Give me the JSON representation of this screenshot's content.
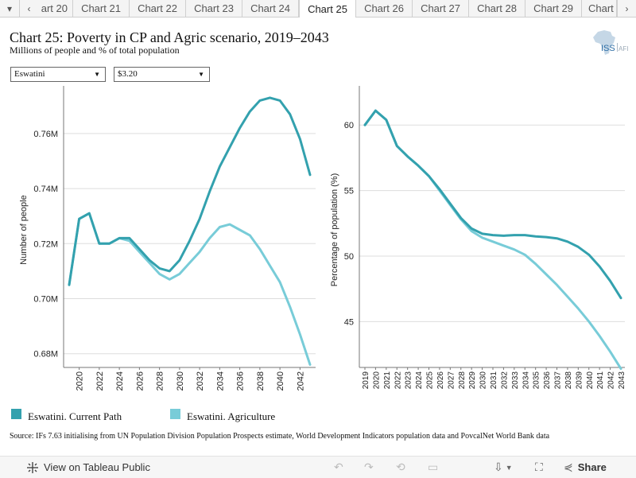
{
  "tabs": {
    "prev_icon": "chevron-left-icon",
    "next_icon": "chevron-right-icon",
    "items": [
      {
        "label": "art 20"
      },
      {
        "label": "Chart 21"
      },
      {
        "label": "Chart 22"
      },
      {
        "label": "Chart 23"
      },
      {
        "label": "Chart 24"
      },
      {
        "label": "Chart 25",
        "active": true
      },
      {
        "label": "Chart 26"
      },
      {
        "label": "Chart 27"
      },
      {
        "label": "Chart 28"
      },
      {
        "label": "Chart 29"
      },
      {
        "label": "Chart"
      }
    ],
    "menu_icon": "caret-down-icon"
  },
  "header": {
    "title": "Chart 25: Poverty in CP and Agric scenario, 2019–2043",
    "subtitle": "Millions of people and % of total population",
    "logo_text": "ISS",
    "logo_suffix": "AFI"
  },
  "filters": {
    "country": "Eswatini",
    "threshold": "$3.20"
  },
  "colors": {
    "current_path": "#33a1ae",
    "agriculture": "#78ccd8",
    "grid": "#dddddd",
    "axis": "#777777"
  },
  "chart_data": [
    {
      "type": "line",
      "ylabel": "Number of people",
      "ylim": [
        0.675,
        0.775
      ],
      "y_ticks": [
        0.68,
        0.7,
        0.72,
        0.74,
        0.76
      ],
      "y_tick_labels": [
        "0.68M",
        "0.70M",
        "0.72M",
        "0.74M",
        "0.76M"
      ],
      "x": [
        2019,
        2020,
        2021,
        2022,
        2023,
        2024,
        2025,
        2026,
        2027,
        2028,
        2029,
        2030,
        2031,
        2032,
        2033,
        2034,
        2035,
        2036,
        2037,
        2038,
        2039,
        2040,
        2041,
        2042,
        2043
      ],
      "x_tick_labels": [
        "2020",
        "2022",
        "2024",
        "2026",
        "2028",
        "2030",
        "2032",
        "2034",
        "2036",
        "2038",
        "2040",
        "2042"
      ],
      "grid": true,
      "series": [
        {
          "name": "Eswatini. Current Path",
          "values": [
            0.705,
            0.729,
            0.731,
            0.72,
            0.72,
            0.722,
            0.722,
            0.718,
            0.714,
            0.711,
            0.71,
            0.714,
            0.721,
            0.729,
            0.739,
            0.748,
            0.755,
            0.762,
            0.768,
            0.772,
            0.773,
            0.772,
            0.767,
            0.758,
            0.745
          ]
        },
        {
          "name": "Eswatini. Agriculture",
          "values": [
            0.705,
            0.729,
            0.731,
            0.72,
            0.72,
            0.722,
            0.721,
            0.717,
            0.713,
            0.709,
            0.707,
            0.709,
            0.713,
            0.717,
            0.722,
            0.726,
            0.727,
            0.725,
            0.723,
            0.718,
            0.712,
            0.706,
            0.697,
            0.687,
            0.676
          ]
        }
      ]
    },
    {
      "type": "line",
      "ylabel": "Percentage of population (%)",
      "ylim": [
        41.5,
        62.5
      ],
      "y_ticks": [
        45,
        50,
        55,
        60
      ],
      "y_tick_labels": [
        "45",
        "50",
        "55",
        "60"
      ],
      "x": [
        2019,
        2020,
        2021,
        2022,
        2023,
        2024,
        2025,
        2026,
        2027,
        2028,
        2029,
        2030,
        2031,
        2032,
        2033,
        2034,
        2035,
        2036,
        2037,
        2038,
        2039,
        2040,
        2041,
        2042,
        2043
      ],
      "x_tick_labels": [
        "2019",
        "2020",
        "2021",
        "2022",
        "2023",
        "2024",
        "2025",
        "2026",
        "2027",
        "2028",
        "2029",
        "2030",
        "2031",
        "2032",
        "2033",
        "2034",
        "2035",
        "2036",
        "2037",
        "2038",
        "2039",
        "2040",
        "2041",
        "2042",
        "2043"
      ],
      "grid": true,
      "series": [
        {
          "name": "Eswatini. Current Path",
          "values": [
            60.0,
            61.1,
            60.4,
            58.4,
            57.6,
            56.9,
            56.1,
            55.1,
            54.0,
            52.9,
            52.1,
            51.7,
            51.6,
            51.55,
            51.6,
            51.6,
            51.5,
            51.45,
            51.35,
            51.1,
            50.7,
            50.1,
            49.2,
            48.1,
            46.8
          ]
        },
        {
          "name": "Eswatini. Agriculture",
          "values": [
            60.0,
            61.1,
            60.4,
            58.4,
            57.6,
            56.9,
            56.1,
            55.0,
            53.9,
            52.8,
            51.9,
            51.4,
            51.1,
            50.8,
            50.5,
            50.1,
            49.4,
            48.6,
            47.8,
            46.9,
            46.0,
            45.0,
            43.9,
            42.7,
            41.4
          ]
        }
      ]
    }
  ],
  "legend": [
    {
      "label": "Eswatini. Current Path"
    },
    {
      "label": "Eswatini. Agriculture"
    }
  ],
  "source": "Source: IFs 7.63 initialising from UN Population Division Population Prospects estimate, World Development Indicators population data and PovcalNet World Bank data",
  "footer": {
    "view_label": "View on Tableau Public",
    "view_icon": "tableau-icon",
    "undo_icon": "undo-icon",
    "redo_icon": "redo-icon",
    "revert_icon": "revert-icon",
    "pause_icon": "pause-icon",
    "download_icon": "download-icon",
    "fullscreen_icon": "fullscreen-icon",
    "share_label": "Share",
    "share_icon": "share-icon"
  }
}
